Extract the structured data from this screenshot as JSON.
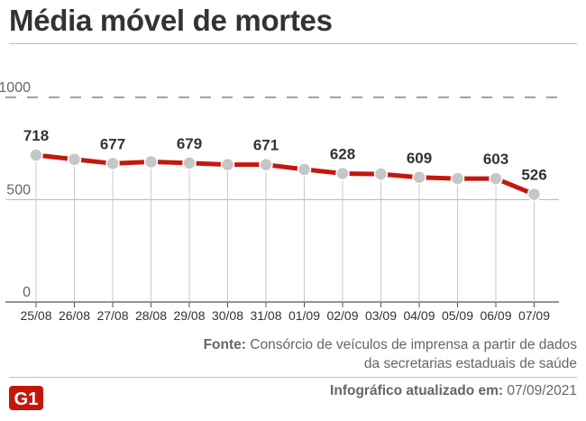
{
  "title": "Média móvel de mortes",
  "source_label": "Fonte:",
  "source_text": "Consórcio de veículos de imprensa a partir de dados da secretarias estaduais de saúde",
  "updated_label": "Infográfico atualizado em:",
  "updated_date": "07/09/2021",
  "logo_text": "G1",
  "colors": {
    "line": "#c4170c",
    "marker": "#c6c6c6",
    "text": "#333333",
    "muted": "#666666",
    "brand": "#c4170c"
  },
  "chart_data": {
    "type": "line",
    "categories": [
      "25/08",
      "26/08",
      "27/08",
      "28/08",
      "29/08",
      "30/08",
      "31/08",
      "01/09",
      "02/09",
      "03/09",
      "04/09",
      "05/09",
      "06/09",
      "07/09"
    ],
    "values": [
      718,
      697,
      677,
      685,
      679,
      671,
      671,
      648,
      628,
      625,
      609,
      603,
      603,
      526
    ],
    "labels": [
      {
        "index": 0,
        "text": "718"
      },
      {
        "index": 2,
        "text": "677"
      },
      {
        "index": 4,
        "text": "679"
      },
      {
        "index": 6,
        "text": "671"
      },
      {
        "index": 8,
        "text": "628"
      },
      {
        "index": 10,
        "text": "609"
      },
      {
        "index": 12,
        "text": "603"
      },
      {
        "index": 13,
        "text": "526"
      }
    ],
    "yticks": [
      "1000",
      "500",
      "0"
    ],
    "ylim": [
      0,
      1000
    ],
    "title": "Média móvel de mortes",
    "xlabel": "",
    "ylabel": "",
    "grid": true
  }
}
